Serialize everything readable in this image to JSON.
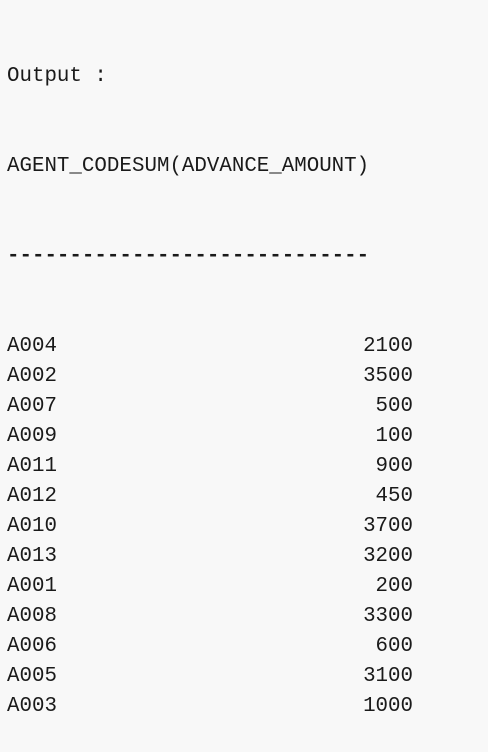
{
  "output_label": "Output :",
  "table": {
    "headers": {
      "agent_code": "AGENT_CODE",
      "sum_amount": "SUM(ADVANCE_AMOUNT)"
    },
    "separator": {
      "agent_code": "----------",
      "sum_amount": "-------------------"
    },
    "rows": [
      {
        "agent_code": "A004",
        "sum": "2100"
      },
      {
        "agent_code": "A002",
        "sum": "3500"
      },
      {
        "agent_code": "A007",
        "sum": "500"
      },
      {
        "agent_code": "A009",
        "sum": "100"
      },
      {
        "agent_code": "A011",
        "sum": "900"
      },
      {
        "agent_code": "A012",
        "sum": "450"
      },
      {
        "agent_code": "A010",
        "sum": "3700"
      },
      {
        "agent_code": "A013",
        "sum": "3200"
      },
      {
        "agent_code": "A001",
        "sum": "200"
      },
      {
        "agent_code": "A008",
        "sum": "3300"
      },
      {
        "agent_code": "A006",
        "sum": "600"
      },
      {
        "agent_code": "A005",
        "sum": "3100"
      },
      {
        "agent_code": "A003",
        "sum": "1000"
      }
    ]
  }
}
